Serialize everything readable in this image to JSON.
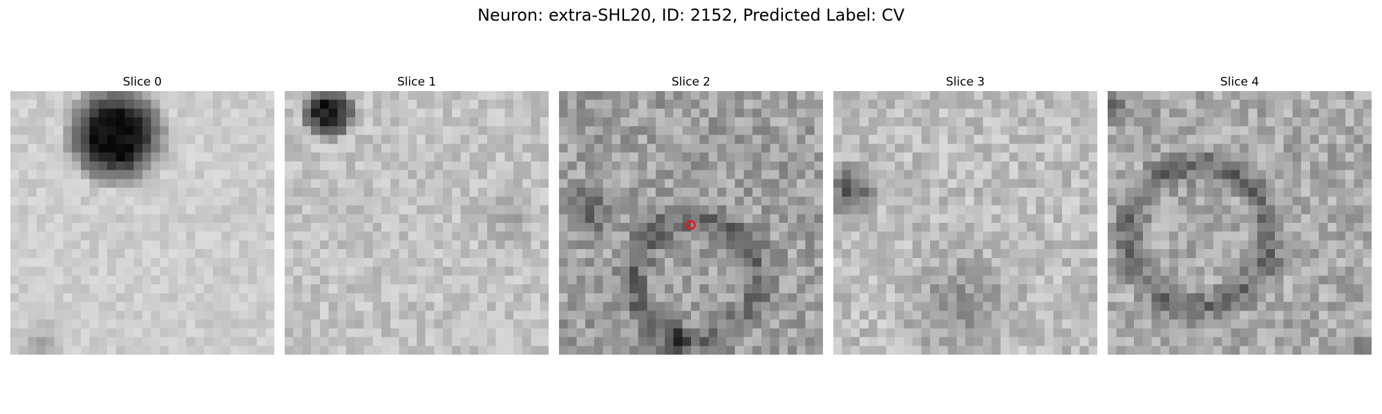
{
  "figure": {
    "title": "Neuron: extra-SHL20, ID: 2152, Predicted Label: CV"
  },
  "slices": [
    {
      "title": "Slice 0"
    },
    {
      "title": "Slice 1"
    },
    {
      "title": "Slice 2"
    },
    {
      "title": "Slice 3"
    },
    {
      "title": "Slice 4"
    }
  ],
  "colors": {
    "marker": "#e8181c",
    "background": "#ffffff"
  }
}
